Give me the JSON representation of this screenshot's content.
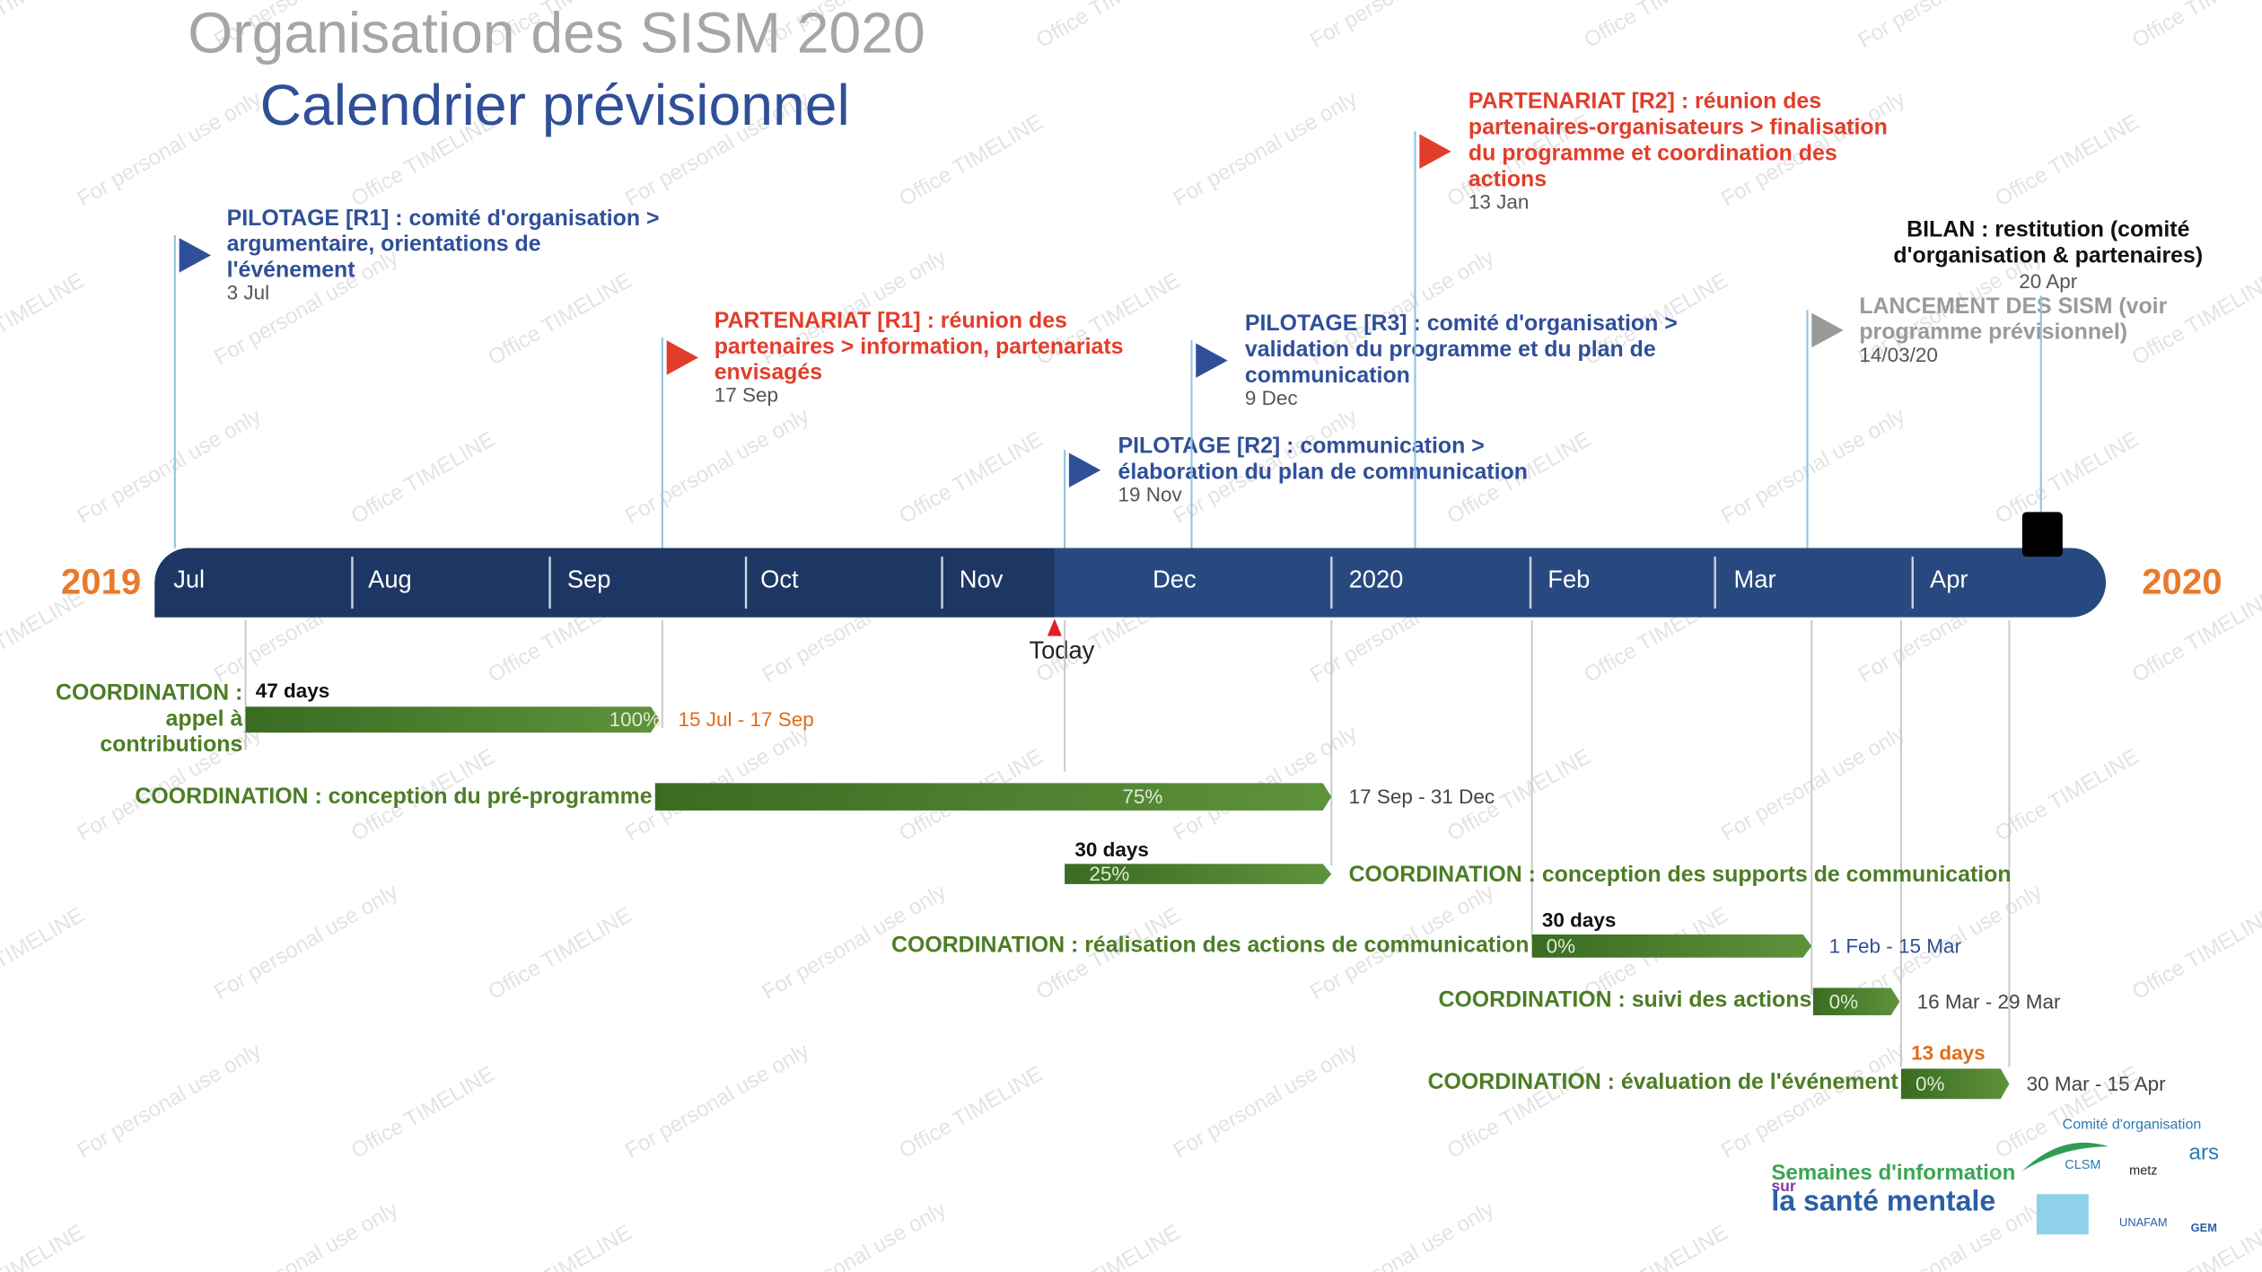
{
  "header": {
    "title": "Organisation des SISM 2020",
    "subtitle": "Calendrier prévisionnel"
  },
  "timeline": {
    "start_year": "2019",
    "end_year": "2020",
    "months": [
      "Jul",
      "Aug",
      "Sep",
      "Oct",
      "Nov",
      "Dec",
      "2020",
      "Feb",
      "Mar",
      "Apr"
    ],
    "today": "Today"
  },
  "milestones": [
    {
      "lines": [
        "PILOTAGE [R1] : comité d'organisation >",
        "argumentaire, orientations de",
        "l'événement"
      ],
      "date": "3 Jul"
    },
    {
      "lines": [
        "PARTENARIAT [R1] : réunion des",
        "partenaires > information, partenariats",
        "envisagés"
      ],
      "date": "17 Sep"
    },
    {
      "lines": [
        "PILOTAGE [R2] : communication >",
        "élaboration du plan de communication"
      ],
      "date": "19 Nov"
    },
    {
      "lines": [
        "PILOTAGE [R3] : comité d'organisation >",
        "validation du programme et du plan de",
        "communication"
      ],
      "date": "9 Dec"
    },
    {
      "lines": [
        "PARTENARIAT [R2] : réunion des",
        "partenaires-organisateurs > finalisation",
        "du programme et coordination des",
        "actions"
      ],
      "date": "13 Jan"
    },
    {
      "lines": [
        "LANCEMENT DES SISM (voir",
        "programme prévisionnel)"
      ],
      "date": "14/03/20"
    },
    {
      "lines": [
        "BILAN : restitution (comité",
        "d'organisation & partenaires)"
      ],
      "date": "20 Apr"
    }
  ],
  "tasks": [
    {
      "lines": [
        "COORDINATION :",
        "appel à",
        "contributions"
      ],
      "duration": "47 days",
      "percent": "100%",
      "dates": "15 Jul - 17 Sep"
    },
    {
      "lines": [
        "COORDINATION : conception du pré-programme"
      ],
      "percent": "75%",
      "dates": "17 Sep - 31 Dec"
    },
    {
      "lines": [
        "COORDINATION : conception des supports de communication"
      ],
      "duration": "30 days",
      "percent": "25%"
    },
    {
      "lines": [
        "COORDINATION : réalisation des actions de communication"
      ],
      "duration": "30 days",
      "percent": "0%",
      "dates": "1 Feb - 15 Mar"
    },
    {
      "lines": [
        "COORDINATION : suivi des actions"
      ],
      "percent": "0%",
      "dates": "16 Mar - 29 Mar"
    },
    {
      "lines": [
        "COORDINATION : évaluation de l'événement"
      ],
      "duration": "13 days",
      "percent": "0%",
      "dates": "30 Mar - 15 Apr"
    }
  ],
  "logos": {
    "committee": "Comité d'organisation",
    "sism_line1": "Semaines d'information",
    "sism_line2": "sur",
    "sism_line3": "la santé mentale",
    "clsm": "CLSM",
    "metz": "metz",
    "ars": "ars",
    "unafam": "UNAFAM",
    "gem": "GEM"
  },
  "watermarks": [
    "Office TIMELINE",
    "For personal use only"
  ]
}
